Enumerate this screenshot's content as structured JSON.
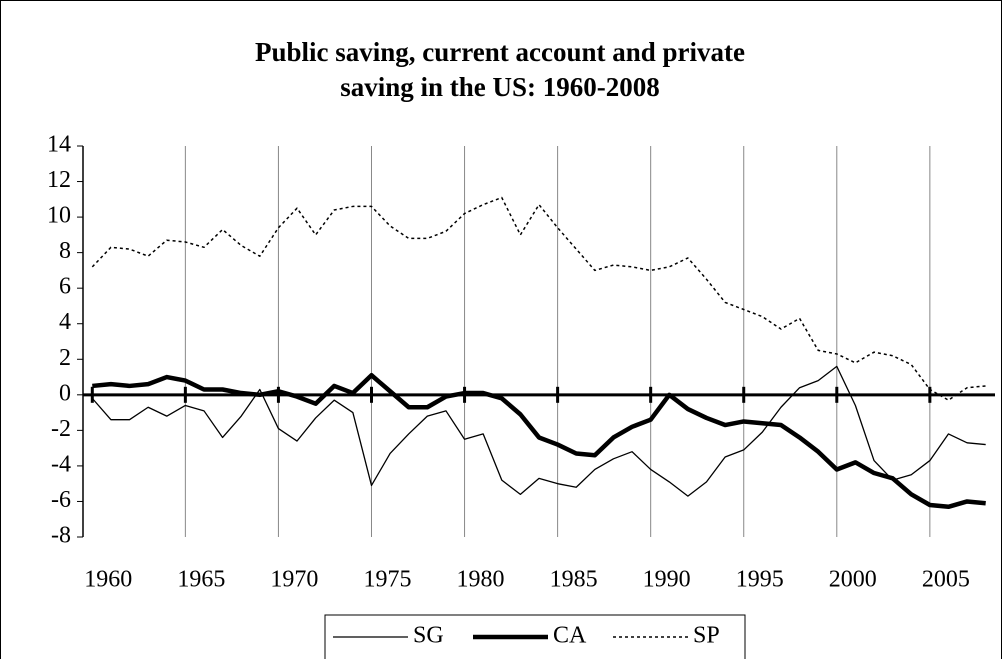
{
  "chart_data": {
    "type": "line",
    "title": [
      "Public saving, current account and private",
      "saving in the US: 1960-2008"
    ],
    "x": [
      1960,
      1961,
      1962,
      1963,
      1964,
      1965,
      1966,
      1967,
      1968,
      1969,
      1970,
      1971,
      1972,
      1973,
      1974,
      1975,
      1976,
      1977,
      1978,
      1979,
      1980,
      1981,
      1982,
      1983,
      1984,
      1985,
      1986,
      1987,
      1988,
      1989,
      1990,
      1991,
      1992,
      1993,
      1994,
      1995,
      1996,
      1997,
      1998,
      1999,
      2000,
      2001,
      2002,
      2003,
      2004,
      2005,
      2006,
      2007,
      2008
    ],
    "series": [
      {
        "name": "SG",
        "color": "#000000",
        "style": "thin",
        "values": [
          -0.2,
          -1.4,
          -1.4,
          -0.7,
          -1.2,
          -0.6,
          -0.9,
          -2.4,
          -1.2,
          0.3,
          -1.9,
          -2.6,
          -1.3,
          -0.3,
          -1.0,
          -5.1,
          -3.3,
          -2.2,
          -1.2,
          -0.9,
          -2.5,
          -2.2,
          -4.8,
          -5.6,
          -4.7,
          -5.0,
          -5.2,
          -4.2,
          -3.6,
          -3.2,
          -4.2,
          -4.9,
          -5.7,
          -4.9,
          -3.5,
          -3.1,
          -2.1,
          -0.7,
          0.4,
          0.8,
          1.6,
          -0.6,
          -3.7,
          -4.8,
          -4.5,
          -3.7,
          -2.2,
          -2.7,
          -2.8
        ]
      },
      {
        "name": "CA",
        "color": "#000000",
        "style": "thick",
        "values": [
          0.5,
          0.6,
          0.5,
          0.6,
          1.0,
          0.8,
          0.3,
          0.3,
          0.1,
          0.0,
          0.2,
          -0.1,
          -0.5,
          0.5,
          0.1,
          1.1,
          0.2,
          -0.7,
          -0.7,
          -0.1,
          0.1,
          0.1,
          -0.2,
          -1.1,
          -2.4,
          -2.8,
          -3.3,
          -3.4,
          -2.4,
          -1.8,
          -1.4,
          0.0,
          -0.8,
          -1.3,
          -1.7,
          -1.5,
          -1.6,
          -1.7,
          -2.4,
          -3.2,
          -4.2,
          -3.8,
          -4.4,
          -4.7,
          -5.6,
          -6.2,
          -6.3,
          -6.0,
          -6.1
        ]
      },
      {
        "name": "SP",
        "color": "#000000",
        "style": "dotted",
        "values": [
          7.2,
          8.3,
          8.2,
          7.8,
          8.7,
          8.6,
          8.3,
          9.3,
          8.4,
          7.8,
          9.4,
          10.5,
          9.0,
          10.4,
          10.6,
          10.6,
          9.5,
          8.8,
          8.8,
          9.2,
          10.2,
          10.7,
          11.1,
          9.0,
          10.7,
          9.4,
          8.2,
          7.0,
          7.3,
          7.2,
          7.0,
          7.2,
          7.7,
          6.5,
          5.2,
          4.8,
          4.4,
          3.7,
          4.3,
          2.5,
          2.3,
          1.8,
          2.4,
          2.2,
          1.7,
          0.3,
          -0.3,
          0.4,
          0.5
        ]
      }
    ],
    "xlim": [
      1959.5,
      2008.5
    ],
    "xticks": [
      1960,
      1965,
      1970,
      1975,
      1980,
      1985,
      1990,
      1995,
      2000,
      2005
    ],
    "ylim": [
      -8,
      14
    ],
    "yticks": [
      -8,
      -6,
      -4,
      -2,
      0,
      2,
      4,
      6,
      8,
      10,
      12,
      14
    ],
    "grid": true,
    "legend": "bottom"
  }
}
